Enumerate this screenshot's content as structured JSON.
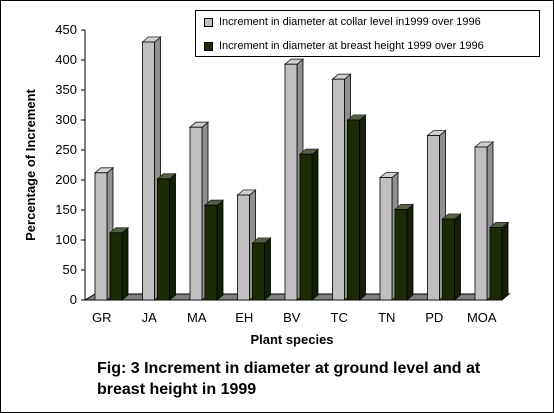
{
  "chart_data": {
    "type": "bar",
    "categories": [
      "GR",
      "JA",
      "MA",
      "EH",
      "BV",
      "TC",
      "TN",
      "PD",
      "MOA"
    ],
    "series": [
      {
        "name": "Increment in diameter  at collar level in1999 over 1996",
        "color": "#c0c0c0",
        "values": [
          212,
          430,
          288,
          175,
          393,
          368,
          204,
          274,
          255
        ]
      },
      {
        "name": "Increment in diameter  at breast height 1999 over 1996",
        "color": "#1a2b06",
        "values": [
          112,
          202,
          158,
          95,
          243,
          300,
          151,
          135,
          121
        ]
      }
    ],
    "xlabel": "Plant species",
    "ylabel": "Percentage of Increment",
    "ylim": [
      0,
      450
    ],
    "yticks": [
      0,
      50,
      100,
      150,
      200,
      250,
      300,
      350,
      400,
      450
    ],
    "grid": false,
    "legend_position": "top-right"
  },
  "caption": "Fig: 3 Increment in diameter at ground level and at breast height in 1999"
}
